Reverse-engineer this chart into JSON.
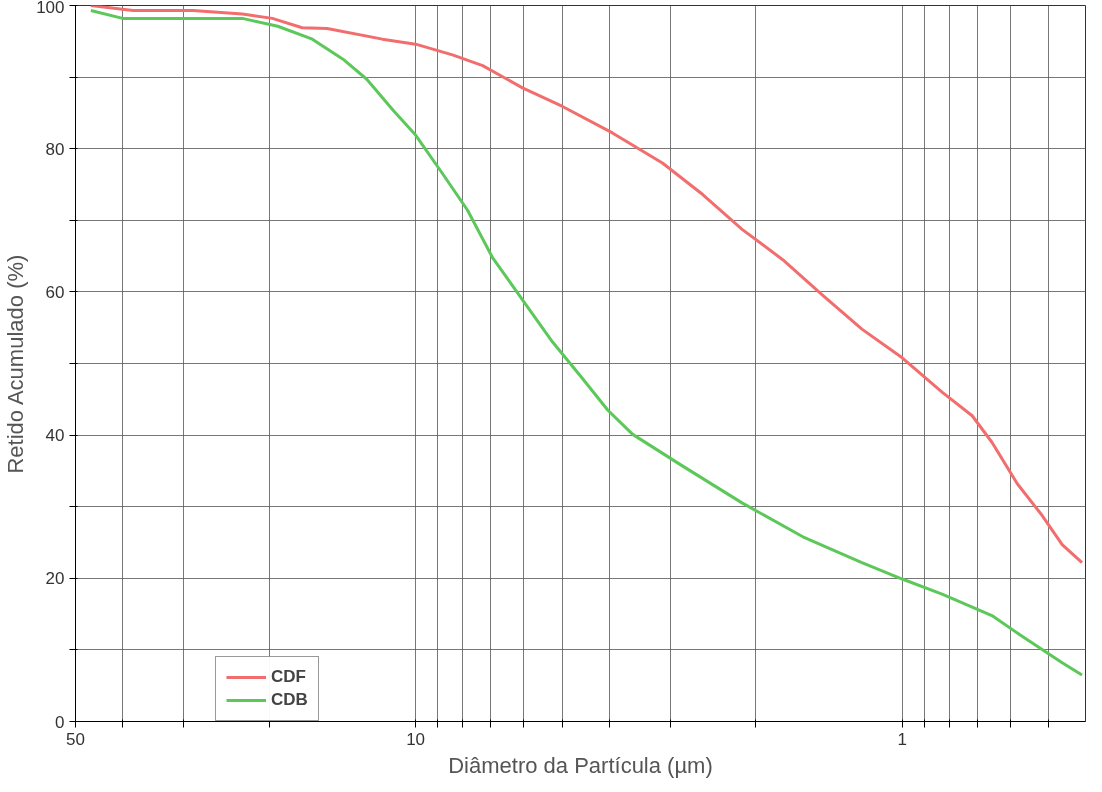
{
  "chart_data": {
    "type": "line",
    "xlabel": "Diâmetro da Partícula (µm)",
    "ylabel": "Retido Acumulado (%)",
    "log": "x",
    "xlim": [
      50,
      0.42
    ],
    "ylim": [
      0,
      100
    ],
    "xticks": [
      50,
      {
        "value": 40,
        "label": null
      },
      {
        "value": 30,
        "label": null
      },
      {
        "value": 20,
        "label": null
      },
      10,
      {
        "value": 9,
        "label": null
      },
      {
        "value": 8,
        "label": null
      },
      {
        "value": 7,
        "label": null
      },
      {
        "value": 6,
        "label": null
      },
      {
        "value": 5,
        "label": null
      },
      {
        "value": 4,
        "label": null
      },
      {
        "value": 3,
        "label": null
      },
      {
        "value": 2,
        "label": null
      },
      1,
      {
        "value": 0.9,
        "label": null
      },
      {
        "value": 0.8,
        "label": null
      },
      {
        "value": 0.7,
        "label": null
      },
      {
        "value": 0.6,
        "label": null
      },
      {
        "value": 0.5,
        "label": null
      }
    ],
    "yticks": [
      0,
      {
        "value": 10,
        "label": null
      },
      20,
      {
        "value": 30,
        "label": null
      },
      40,
      {
        "value": 50,
        "label": null
      },
      60,
      {
        "value": 70,
        "label": null
      },
      80,
      {
        "value": 90,
        "label": null
      },
      100
    ],
    "grid": true,
    "legend": "left",
    "line_style": "solid",
    "series": [
      {
        "name": "CDF",
        "color": "#f26d6d",
        "x": [
          46.5,
          38.1,
          28.7,
          22.7,
          19.7,
          17.1,
          15.2,
          11.7,
          10,
          8.4,
          7.28,
          6.03,
          4.99,
          3.94,
          3.11,
          2.57,
          2.13,
          1.76,
          1.46,
          1.21,
          1,
          0.828,
          0.718,
          0.654,
          0.58,
          0.516,
          0.469,
          0.427
        ],
        "values": [
          100,
          99.3,
          99.3,
          98.8,
          98.2,
          96.9,
          96.8,
          95.3,
          94.6,
          93.1,
          91.6,
          88.5,
          85.9,
          82.2,
          78,
          73.6,
          68.7,
          64.5,
          59.6,
          54.8,
          50.8,
          46,
          42.7,
          39,
          33.2,
          28.8,
          24.7,
          22.2
        ]
      },
      {
        "name": "CDB",
        "color": "#5cc85a",
        "x": [
          46.5,
          40,
          30.1,
          22.7,
          19.2,
          16.3,
          14.1,
          12.6,
          11.1,
          10,
          8.8,
          7.82,
          6.95,
          6.03,
          5.23,
          4.54,
          4.03,
          3.58,
          2.83,
          2.13,
          1.6,
          1.21,
          1,
          0.828,
          0.654,
          0.567,
          0.469,
          0.427
        ],
        "values": [
          99.3,
          98.2,
          98.2,
          98.2,
          97.1,
          95.3,
          92.5,
          89.7,
          85.3,
          81.9,
          76.5,
          71.4,
          64.8,
          58.9,
          53,
          47.9,
          43.5,
          40.1,
          35.7,
          30.5,
          25.8,
          22.2,
          19.9,
          17.8,
          14.8,
          11.9,
          8.2,
          6.5
        ]
      }
    ]
  }
}
